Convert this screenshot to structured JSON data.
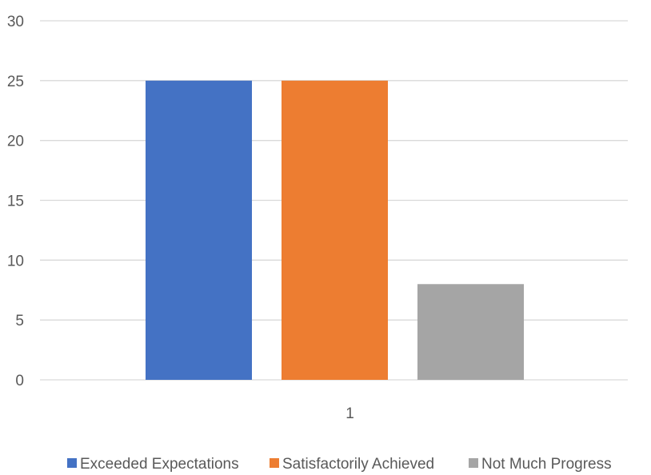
{
  "chart_data": {
    "type": "bar",
    "categories": [
      "1"
    ],
    "series": [
      {
        "name": "Exceeded Expectations",
        "values": [
          25
        ],
        "color": "#4472C4"
      },
      {
        "name": "Satisfactorily Achieved",
        "values": [
          25
        ],
        "color": "#ED7D31"
      },
      {
        "name": "Not Much Progress",
        "values": [
          8
        ],
        "color": "#A5A5A5"
      }
    ],
    "y_ticks": [
      "0",
      "5",
      "10",
      "15",
      "20",
      "25",
      "30"
    ],
    "ylim": [
      0,
      30
    ],
    "grid": true,
    "legend_position": "bottom",
    "gridline_color": "#D9D9D9"
  }
}
